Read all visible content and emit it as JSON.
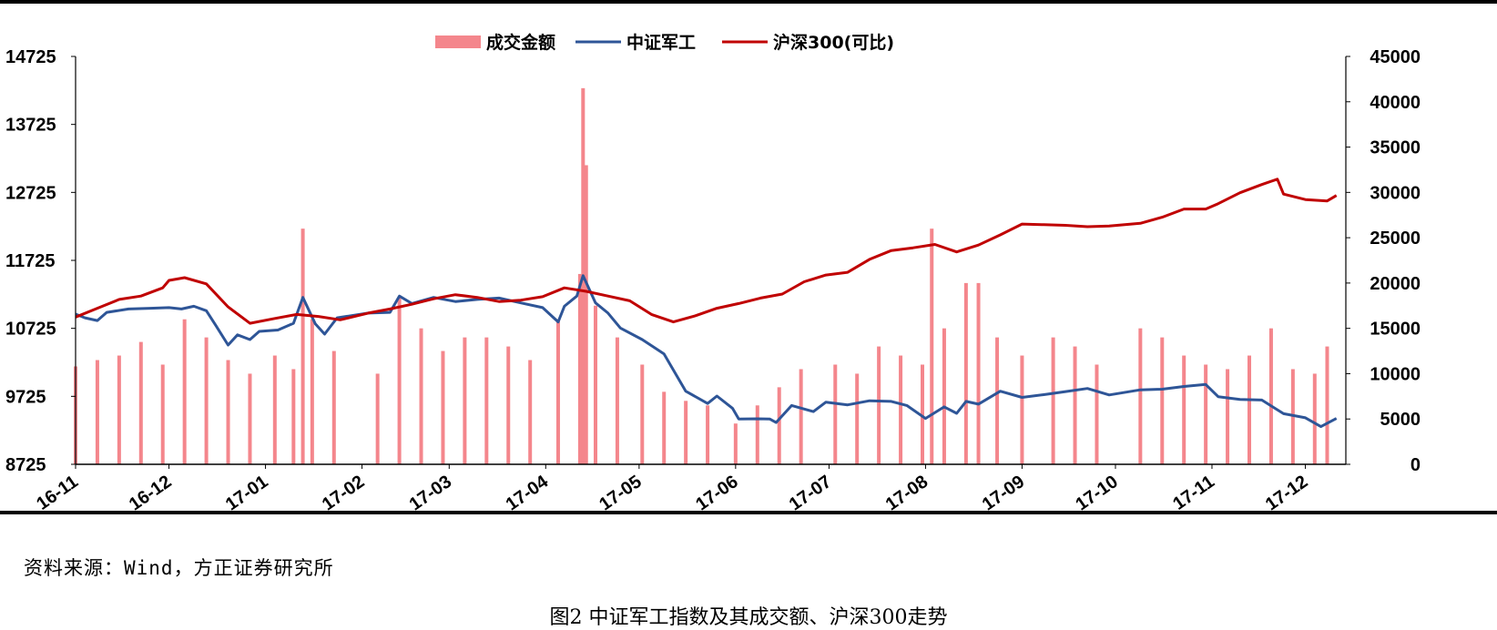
{
  "source_note": "资料来源：Wind，方正证券研究所",
  "caption": "图2  中证军工指数及其成交额、沪深300走势",
  "colors": {
    "bar": "#f4868c",
    "military": "#2e5597",
    "hs300": "#c00000",
    "axis": "#000000"
  },
  "chart_data": {
    "type": "bar+line",
    "title": "",
    "xlabel": "",
    "legend_position": "top-center",
    "grid": false,
    "x_ticks": [
      "16-11",
      "16-12",
      "17-01",
      "17-02",
      "17-03",
      "17-04",
      "17-05",
      "17-06",
      "17-07",
      "17-08",
      "17-09",
      "17-10",
      "17-11",
      "17-12"
    ],
    "y_left": {
      "min": 8725,
      "max": 14725,
      "ticks": [
        14725,
        13725,
        12725,
        11725,
        10725,
        9725,
        8725
      ]
    },
    "y_right": {
      "min": 0,
      "max": 45000,
      "ticks": [
        45000,
        40000,
        35000,
        30000,
        25000,
        20000,
        15000,
        10000,
        5000,
        0
      ]
    },
    "series": [
      {
        "name": "成交金额",
        "type": "bar",
        "axis": "right",
        "points": [
          [
            "2016-11-01",
            10800
          ],
          [
            "2016-11-08",
            11500
          ],
          [
            "2016-11-15",
            12000
          ],
          [
            "2016-11-22",
            13500
          ],
          [
            "2016-11-29",
            11000
          ],
          [
            "2016-12-06",
            16000
          ],
          [
            "2016-12-13",
            14000
          ],
          [
            "2016-12-20",
            11500
          ],
          [
            "2016-12-27",
            10000
          ],
          [
            "2017-01-04",
            12000
          ],
          [
            "2017-01-10",
            10500
          ],
          [
            "2017-01-13",
            26000
          ],
          [
            "2017-01-16",
            16000
          ],
          [
            "2017-01-23",
            12500
          ],
          [
            "2017-02-06",
            10000
          ],
          [
            "2017-02-13",
            18500
          ],
          [
            "2017-02-20",
            15000
          ],
          [
            "2017-02-27",
            12500
          ],
          [
            "2017-03-06",
            14000
          ],
          [
            "2017-03-13",
            14000
          ],
          [
            "2017-03-20",
            13000
          ],
          [
            "2017-03-27",
            11500
          ],
          [
            "2017-04-05",
            16000
          ],
          [
            "2017-04-12",
            21000
          ],
          [
            "2017-04-13",
            41500
          ],
          [
            "2017-04-14",
            33000
          ],
          [
            "2017-04-17",
            17500
          ],
          [
            "2017-04-24",
            14000
          ],
          [
            "2017-05-02",
            11000
          ],
          [
            "2017-05-09",
            8000
          ],
          [
            "2017-05-16",
            7000
          ],
          [
            "2017-05-23",
            6500
          ],
          [
            "2017-06-01",
            4500
          ],
          [
            "2017-06-08",
            6500
          ],
          [
            "2017-06-15",
            8500
          ],
          [
            "2017-06-22",
            10500
          ],
          [
            "2017-07-03",
            11000
          ],
          [
            "2017-07-10",
            10000
          ],
          [
            "2017-07-17",
            13000
          ],
          [
            "2017-07-24",
            12000
          ],
          [
            "2017-07-31",
            11000
          ],
          [
            "2017-08-03",
            26000
          ],
          [
            "2017-08-07",
            15000
          ],
          [
            "2017-08-14",
            20000
          ],
          [
            "2017-08-18",
            20000
          ],
          [
            "2017-08-24",
            14000
          ],
          [
            "2017-09-01",
            12000
          ],
          [
            "2017-09-11",
            14000
          ],
          [
            "2017-09-18",
            13000
          ],
          [
            "2017-09-25",
            11000
          ],
          [
            "2017-10-09",
            15000
          ],
          [
            "2017-10-16",
            14000
          ],
          [
            "2017-10-23",
            12000
          ],
          [
            "2017-10-30",
            11000
          ],
          [
            "2017-11-06",
            10500
          ],
          [
            "2017-11-13",
            12000
          ],
          [
            "2017-11-20",
            15000
          ],
          [
            "2017-11-27",
            10500
          ],
          [
            "2017-12-04",
            10000
          ],
          [
            "2017-12-08",
            13000
          ]
        ]
      },
      {
        "name": "中证军工",
        "type": "line",
        "axis": "left",
        "points": [
          [
            "2016-11-01",
            10935
          ],
          [
            "2016-11-04",
            10880
          ],
          [
            "2016-11-08",
            10840
          ],
          [
            "2016-11-11",
            10960
          ],
          [
            "2016-11-18",
            11010
          ],
          [
            "2016-11-25",
            11020
          ],
          [
            "2016-12-01",
            11030
          ],
          [
            "2016-12-05",
            11010
          ],
          [
            "2016-12-09",
            11050
          ],
          [
            "2016-12-13",
            10985
          ],
          [
            "2016-12-16",
            10770
          ],
          [
            "2016-12-20",
            10480
          ],
          [
            "2016-12-23",
            10630
          ],
          [
            "2016-12-27",
            10560
          ],
          [
            "2016-12-30",
            10680
          ],
          [
            "2017-01-05",
            10700
          ],
          [
            "2017-01-10",
            10800
          ],
          [
            "2017-01-13",
            11180
          ],
          [
            "2017-01-17",
            10790
          ],
          [
            "2017-01-20",
            10640
          ],
          [
            "2017-01-24",
            10880
          ],
          [
            "2017-02-03",
            10950
          ],
          [
            "2017-02-10",
            10960
          ],
          [
            "2017-02-13",
            11200
          ],
          [
            "2017-02-17",
            11090
          ],
          [
            "2017-02-24",
            11180
          ],
          [
            "2017-03-03",
            11120
          ],
          [
            "2017-03-10",
            11150
          ],
          [
            "2017-03-17",
            11170
          ],
          [
            "2017-03-24",
            11100
          ],
          [
            "2017-03-31",
            11030
          ],
          [
            "2017-04-05",
            10820
          ],
          [
            "2017-04-07",
            11050
          ],
          [
            "2017-04-11",
            11200
          ],
          [
            "2017-04-13",
            11500
          ],
          [
            "2017-04-17",
            11100
          ],
          [
            "2017-04-21",
            10950
          ],
          [
            "2017-04-25",
            10730
          ],
          [
            "2017-05-02",
            10560
          ],
          [
            "2017-05-09",
            10350
          ],
          [
            "2017-05-16",
            9800
          ],
          [
            "2017-05-23",
            9620
          ],
          [
            "2017-05-26",
            9730
          ],
          [
            "2017-05-31",
            9550
          ],
          [
            "2017-06-02",
            9390
          ],
          [
            "2017-06-08",
            9395
          ],
          [
            "2017-06-12",
            9390
          ],
          [
            "2017-06-14",
            9340
          ],
          [
            "2017-06-19",
            9590
          ],
          [
            "2017-06-26",
            9500
          ],
          [
            "2017-06-30",
            9640
          ],
          [
            "2017-07-07",
            9600
          ],
          [
            "2017-07-14",
            9660
          ],
          [
            "2017-07-21",
            9650
          ],
          [
            "2017-07-26",
            9590
          ],
          [
            "2017-08-01",
            9400
          ],
          [
            "2017-08-07",
            9570
          ],
          [
            "2017-08-11",
            9475
          ],
          [
            "2017-08-14",
            9650
          ],
          [
            "2017-08-18",
            9610
          ],
          [
            "2017-08-25",
            9800
          ],
          [
            "2017-09-01",
            9710
          ],
          [
            "2017-09-08",
            9750
          ],
          [
            "2017-09-15",
            9795
          ],
          [
            "2017-09-22",
            9840
          ],
          [
            "2017-09-29",
            9745
          ],
          [
            "2017-10-09",
            9820
          ],
          [
            "2017-10-16",
            9830
          ],
          [
            "2017-10-23",
            9870
          ],
          [
            "2017-10-30",
            9900
          ],
          [
            "2017-11-03",
            9720
          ],
          [
            "2017-11-10",
            9680
          ],
          [
            "2017-11-17",
            9670
          ],
          [
            "2017-11-24",
            9470
          ],
          [
            "2017-12-01",
            9410
          ],
          [
            "2017-12-06",
            9280
          ],
          [
            "2017-12-11",
            9400
          ]
        ]
      },
      {
        "name": "沪深300(可比)",
        "type": "line",
        "axis": "left",
        "points": [
          [
            "2016-11-01",
            10890
          ],
          [
            "2016-11-08",
            11020
          ],
          [
            "2016-11-15",
            11150
          ],
          [
            "2016-11-22",
            11200
          ],
          [
            "2016-11-29",
            11320
          ],
          [
            "2016-12-01",
            11430
          ],
          [
            "2016-12-06",
            11470
          ],
          [
            "2016-12-13",
            11380
          ],
          [
            "2016-12-20",
            11040
          ],
          [
            "2016-12-27",
            10800
          ],
          [
            "2017-01-04",
            10870
          ],
          [
            "2017-01-11",
            10930
          ],
          [
            "2017-01-18",
            10900
          ],
          [
            "2017-01-25",
            10850
          ],
          [
            "2017-02-03",
            10950
          ],
          [
            "2017-02-10",
            11010
          ],
          [
            "2017-02-17",
            11080
          ],
          [
            "2017-02-24",
            11160
          ],
          [
            "2017-03-03",
            11220
          ],
          [
            "2017-03-10",
            11180
          ],
          [
            "2017-03-17",
            11120
          ],
          [
            "2017-03-24",
            11140
          ],
          [
            "2017-03-31",
            11190
          ],
          [
            "2017-04-07",
            11320
          ],
          [
            "2017-04-14",
            11270
          ],
          [
            "2017-04-21",
            11200
          ],
          [
            "2017-04-28",
            11130
          ],
          [
            "2017-05-05",
            10930
          ],
          [
            "2017-05-12",
            10820
          ],
          [
            "2017-05-19",
            10910
          ],
          [
            "2017-05-26",
            11020
          ],
          [
            "2017-06-02",
            11090
          ],
          [
            "2017-06-09",
            11170
          ],
          [
            "2017-06-16",
            11230
          ],
          [
            "2017-06-23",
            11410
          ],
          [
            "2017-06-30",
            11510
          ],
          [
            "2017-07-07",
            11550
          ],
          [
            "2017-07-14",
            11740
          ],
          [
            "2017-07-21",
            11870
          ],
          [
            "2017-07-28",
            11910
          ],
          [
            "2017-08-04",
            11960
          ],
          [
            "2017-08-11",
            11850
          ],
          [
            "2017-08-18",
            11950
          ],
          [
            "2017-08-25",
            12100
          ],
          [
            "2017-09-01",
            12260
          ],
          [
            "2017-09-08",
            12250
          ],
          [
            "2017-09-15",
            12240
          ],
          [
            "2017-09-22",
            12220
          ],
          [
            "2017-09-29",
            12230
          ],
          [
            "2017-10-09",
            12270
          ],
          [
            "2017-10-16",
            12360
          ],
          [
            "2017-10-23",
            12480
          ],
          [
            "2017-10-30",
            12480
          ],
          [
            "2017-11-03",
            12560
          ],
          [
            "2017-11-10",
            12720
          ],
          [
            "2017-11-17",
            12840
          ],
          [
            "2017-11-22",
            12920
          ],
          [
            "2017-11-24",
            12700
          ],
          [
            "2017-12-01",
            12620
          ],
          [
            "2017-12-08",
            12600
          ],
          [
            "2017-12-11",
            12680
          ]
        ]
      }
    ]
  }
}
